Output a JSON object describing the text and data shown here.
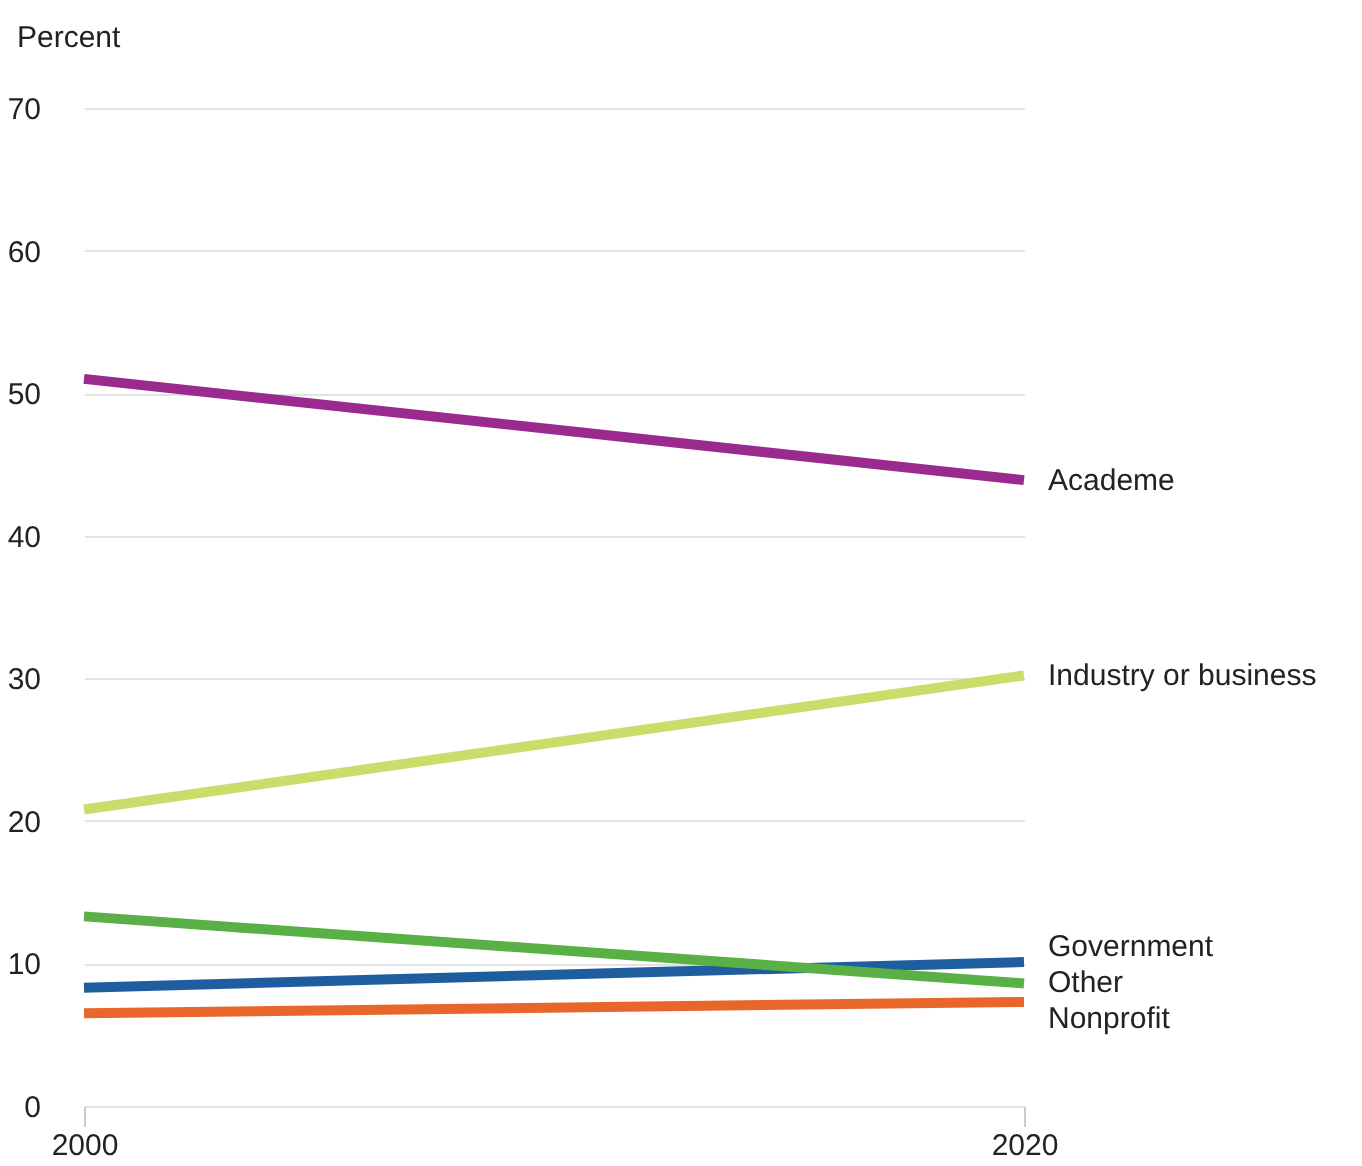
{
  "chart_data": {
    "type": "line",
    "ylabel": "Percent",
    "x": [
      2000,
      2020
    ],
    "xlim": [
      2000,
      2020
    ],
    "xticks": [
      2000,
      2020
    ],
    "ylim": [
      0,
      70
    ],
    "yticks": [
      0,
      10,
      20,
      30,
      40,
      50,
      60,
      70
    ],
    "grid": "y",
    "line_style": "solid",
    "marker": "none",
    "series": [
      {
        "name": "Academe",
        "color": "#9b2a8e",
        "values": [
          51,
          43.9
        ]
      },
      {
        "name": "Industry or business",
        "color": "#c9dd6a",
        "values": [
          20.8,
          30.2
        ]
      },
      {
        "name": "Government",
        "color": "#1f5e9e",
        "values": [
          8.3,
          10.1
        ]
      },
      {
        "name": "Other",
        "color": "#5aaf46",
        "values": [
          13.3,
          8.6
        ]
      },
      {
        "name": "Nonprofit",
        "color": "#e8662a",
        "values": [
          6.5,
          7.3
        ]
      }
    ]
  }
}
